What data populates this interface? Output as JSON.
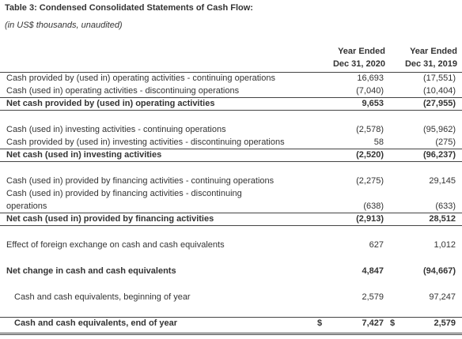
{
  "title": "Table 3: Condensed Consolidated Statements of Cash Flow:",
  "subtitle": "(in US$ thousands, unaudited)",
  "table": {
    "headers": [
      [
        "Year Ended",
        "Dec 31, 2020"
      ],
      [
        "Year Ended",
        "Dec 31, 2019"
      ]
    ],
    "sections": [
      {
        "rows": [
          {
            "label": [
              "Cash provided by (used in) operating activities - continuing operations"
            ],
            "values": [
              "16,693",
              "(17,551)"
            ]
          },
          {
            "label": [
              "Cash (used in) operating activities - discontinuing operations"
            ],
            "values": [
              "(7,040)",
              "(10,404)"
            ]
          },
          {
            "label": [
              "Net cash provided by (used in) operating activities"
            ],
            "values": [
              "9,653",
              "(27,955)"
            ],
            "bold": true
          }
        ]
      },
      {
        "rows": [
          {
            "label": [
              "Cash (used in) investing activities - continuing operations"
            ],
            "values": [
              "(2,578)",
              "(95,962)"
            ]
          },
          {
            "label": [
              "Cash provided by (used in) investing activities - discontinuing operations"
            ],
            "values": [
              "58",
              "(275)"
            ]
          },
          {
            "label": [
              "Net cash (used in) investing activities"
            ],
            "values": [
              "(2,520)",
              "(96,237)"
            ],
            "bold": true
          }
        ]
      },
      {
        "rows": [
          {
            "label": [
              "Cash (used in) provided by financing activities - continuing operations"
            ],
            "values": [
              "(2,275)",
              "29,145"
            ]
          },
          {
            "label": [
              "Cash (used in) provided by financing activities - discontinuing",
              "operations"
            ],
            "values": [
              "(638)",
              "(633)"
            ]
          },
          {
            "label": [
              "Net cash (used in) provided by financing activities"
            ],
            "values": [
              "(2,913)",
              "28,512"
            ],
            "bold": true
          }
        ]
      },
      {
        "rows": [
          {
            "label": [
              "Effect of foreign exchange on cash and cash equivalents"
            ],
            "values": [
              "627",
              "1,012"
            ]
          }
        ]
      },
      {
        "rows": [
          {
            "label": [
              "Net change in cash and cash equivalents"
            ],
            "values": [
              "4,847",
              "(94,667)"
            ],
            "bold": true,
            "plain": true
          }
        ]
      },
      {
        "rows": [
          {
            "label": [
              "Cash and cash equivalents, beginning of year"
            ],
            "values": [
              "2,579",
              "97,247"
            ],
            "indent": true
          }
        ]
      },
      {
        "rows": [
          {
            "label": [
              "Cash and cash equivalents, end of year"
            ],
            "values": [
              "7,427",
              "2,579"
            ],
            "currency": [
              "$",
              "$"
            ],
            "bold": true,
            "indent": true,
            "final": true
          }
        ]
      }
    ]
  }
}
